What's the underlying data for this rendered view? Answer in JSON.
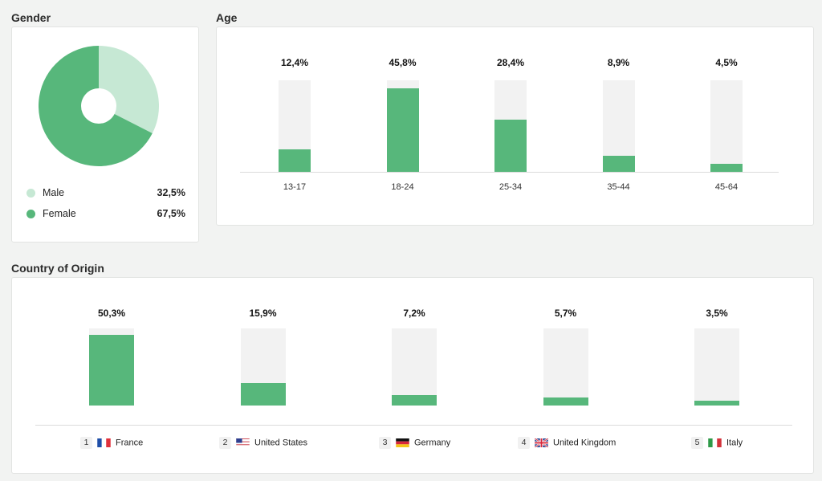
{
  "gender": {
    "title": "Gender",
    "items": [
      {
        "label": "Male",
        "value": "32,5%",
        "pct": 32.5,
        "color": "#c6e8d4"
      },
      {
        "label": "Female",
        "value": "67,5%",
        "pct": 67.5,
        "color": "#57b77b"
      }
    ]
  },
  "age": {
    "title": "Age",
    "bars": [
      {
        "label": "13-17",
        "value": "12,4%",
        "pct": 12.4
      },
      {
        "label": "18-24",
        "value": "45,8%",
        "pct": 45.8
      },
      {
        "label": "25-34",
        "value": "28,4%",
        "pct": 28.4
      },
      {
        "label": "35-44",
        "value": "8,9%",
        "pct": 8.9
      },
      {
        "label": "45-64",
        "value": "4,5%",
        "pct": 4.5
      }
    ]
  },
  "country": {
    "title": "Country of Origin",
    "bars": [
      {
        "rank": "1",
        "label": "France",
        "value": "50,3%",
        "pct": 50.3,
        "flag": "france-flag-icon"
      },
      {
        "rank": "2",
        "label": "United States",
        "value": "15,9%",
        "pct": 15.9,
        "flag": "us-flag-icon"
      },
      {
        "rank": "3",
        "label": "Germany",
        "value": "7,2%",
        "pct": 7.2,
        "flag": "germany-flag-icon"
      },
      {
        "rank": "4",
        "label": "United Kingdom",
        "value": "5,7%",
        "pct": 5.7,
        "flag": "uk-flag-icon"
      },
      {
        "rank": "5",
        "label": "Italy",
        "value": "3,5%",
        "pct": 3.5,
        "flag": "italy-flag-icon"
      }
    ]
  },
  "chart_data": [
    {
      "type": "pie",
      "title": "Gender",
      "categories": [
        "Male",
        "Female"
      ],
      "values": [
        32.5,
        67.5
      ],
      "colors": [
        "#c6e8d4",
        "#57b77b"
      ]
    },
    {
      "type": "bar",
      "title": "Age",
      "categories": [
        "13-17",
        "18-24",
        "25-34",
        "35-44",
        "45-64"
      ],
      "values": [
        12.4,
        45.8,
        28.4,
        8.9,
        4.5
      ]
    },
    {
      "type": "bar",
      "title": "Country of Origin",
      "categories": [
        "France",
        "United States",
        "Germany",
        "United Kingdom",
        "Italy"
      ],
      "values": [
        50.3,
        15.9,
        7.2,
        5.7,
        3.5
      ]
    }
  ]
}
